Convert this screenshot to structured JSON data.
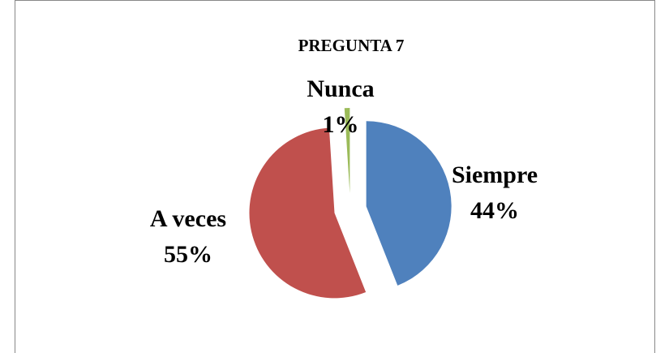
{
  "chart_data": {
    "type": "pie",
    "title": "PREGUNTA 7",
    "categories": [
      "Siempre",
      "A veces",
      "Nunca"
    ],
    "values": [
      44,
      55,
      1
    ],
    "value_labels": [
      "44%",
      "55%",
      "1%"
    ],
    "colors": [
      "#4f81bd",
      "#c0504d",
      "#9bbb59"
    ]
  }
}
